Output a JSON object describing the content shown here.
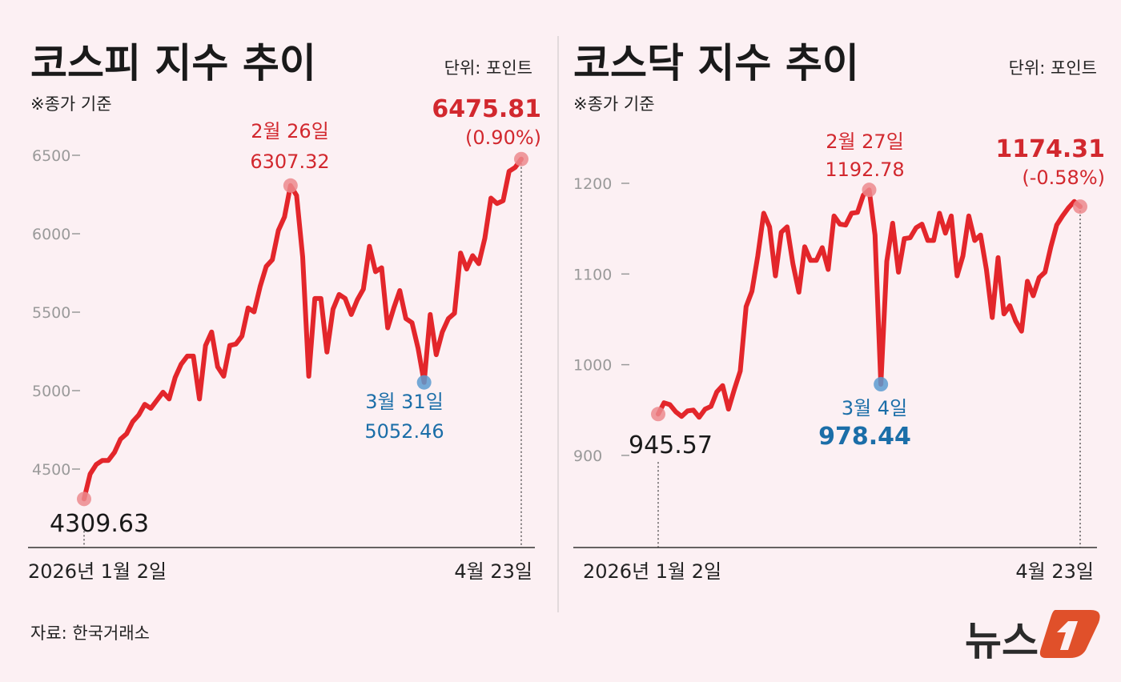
{
  "colors": {
    "background": "#fcf0f3",
    "line": "#e3262b",
    "high": "#d2282e",
    "low": "#1b6ea8",
    "marker_red": "#ec8a8d",
    "marker_blue": "#5c9bd0",
    "logo": "#e0502a"
  },
  "source": "자료: 한국거래소",
  "logo": {
    "text": "뉴스1"
  },
  "chart_data": [
    {
      "type": "line",
      "title": "코스피 지수 추이",
      "unit": "단위: 포인트",
      "note": "※종가 기준",
      "yticks": [
        4500,
        5000,
        5500,
        6000,
        6500
      ],
      "yticklabels": [
        "4500",
        "5000",
        "5500",
        "6000",
        "6500"
      ],
      "ylim": [
        4200,
        6650
      ],
      "x_start_label": "2026년 1월 2일",
      "x_end_label": "4월 23일",
      "grid": false,
      "values": [
        4309.63,
        4469,
        4529,
        4555,
        4555,
        4606,
        4691,
        4725,
        4802,
        4845,
        4913,
        4887,
        4939,
        4990,
        4947,
        5084,
        5169,
        5220,
        5220,
        4947,
        5288,
        5374,
        5152,
        5092,
        5288,
        5297,
        5348,
        5527,
        5502,
        5664,
        5792,
        5834,
        6022,
        6107,
        6307.32,
        6244,
        5852,
        5092,
        5587,
        5587,
        5246,
        5519,
        5613,
        5587,
        5485,
        5579,
        5647,
        5920,
        5758,
        5783,
        5400,
        5527,
        5638,
        5459,
        5433,
        5271,
        5052.46,
        5485,
        5229,
        5374,
        5459,
        5493,
        5877,
        5775,
        5860,
        5809,
        5971,
        6227,
        6193,
        6210,
        6398,
        6423,
        6475.81
      ],
      "annotations": {
        "start": {
          "value": "4309.63"
        },
        "high": {
          "date": "2월 26일",
          "value": "6307.32"
        },
        "low": {
          "date": "3월 31일",
          "value": "5052.46"
        },
        "end": {
          "value": "6475.81",
          "change": "(0.90%)"
        }
      }
    },
    {
      "type": "line",
      "title": "코스닥 지수 추이",
      "unit": "단위: 포인트",
      "note": "※종가 기준",
      "yticks": [
        900,
        1000,
        1100,
        1200
      ],
      "yticklabels": [
        "900",
        "1000",
        "1100",
        "1200"
      ],
      "ylim": [
        850,
        1250
      ],
      "x_start_label": "2026년 1월 2일",
      "x_end_label": "4월 23일",
      "grid": false,
      "values": [
        945.57,
        958,
        956,
        948,
        943,
        949,
        950,
        942,
        951,
        954,
        970,
        977,
        951,
        973,
        993,
        1064,
        1081,
        1120,
        1167,
        1152,
        1098,
        1146,
        1152,
        1111,
        1080,
        1130,
        1115,
        1115,
        1129,
        1105,
        1164,
        1155,
        1154,
        1167,
        1168,
        1187,
        1192.78,
        1143,
        978.44,
        1114,
        1156,
        1102,
        1139,
        1140,
        1151,
        1155,
        1137,
        1137,
        1167,
        1145,
        1164,
        1098,
        1120,
        1164,
        1137,
        1143,
        1105,
        1052,
        1118,
        1056,
        1065,
        1048,
        1037,
        1092,
        1076,
        1096,
        1102,
        1130,
        1154,
        1164,
        1173,
        1180,
        1174.31
      ],
      "annotations": {
        "start": {
          "value": "945.57"
        },
        "high": {
          "date": "2월 27일",
          "value": "1192.78"
        },
        "low": {
          "date": "3월 4일",
          "value": "978.44"
        },
        "end": {
          "value": "1174.31",
          "change": "(-0.58%)"
        }
      }
    }
  ]
}
